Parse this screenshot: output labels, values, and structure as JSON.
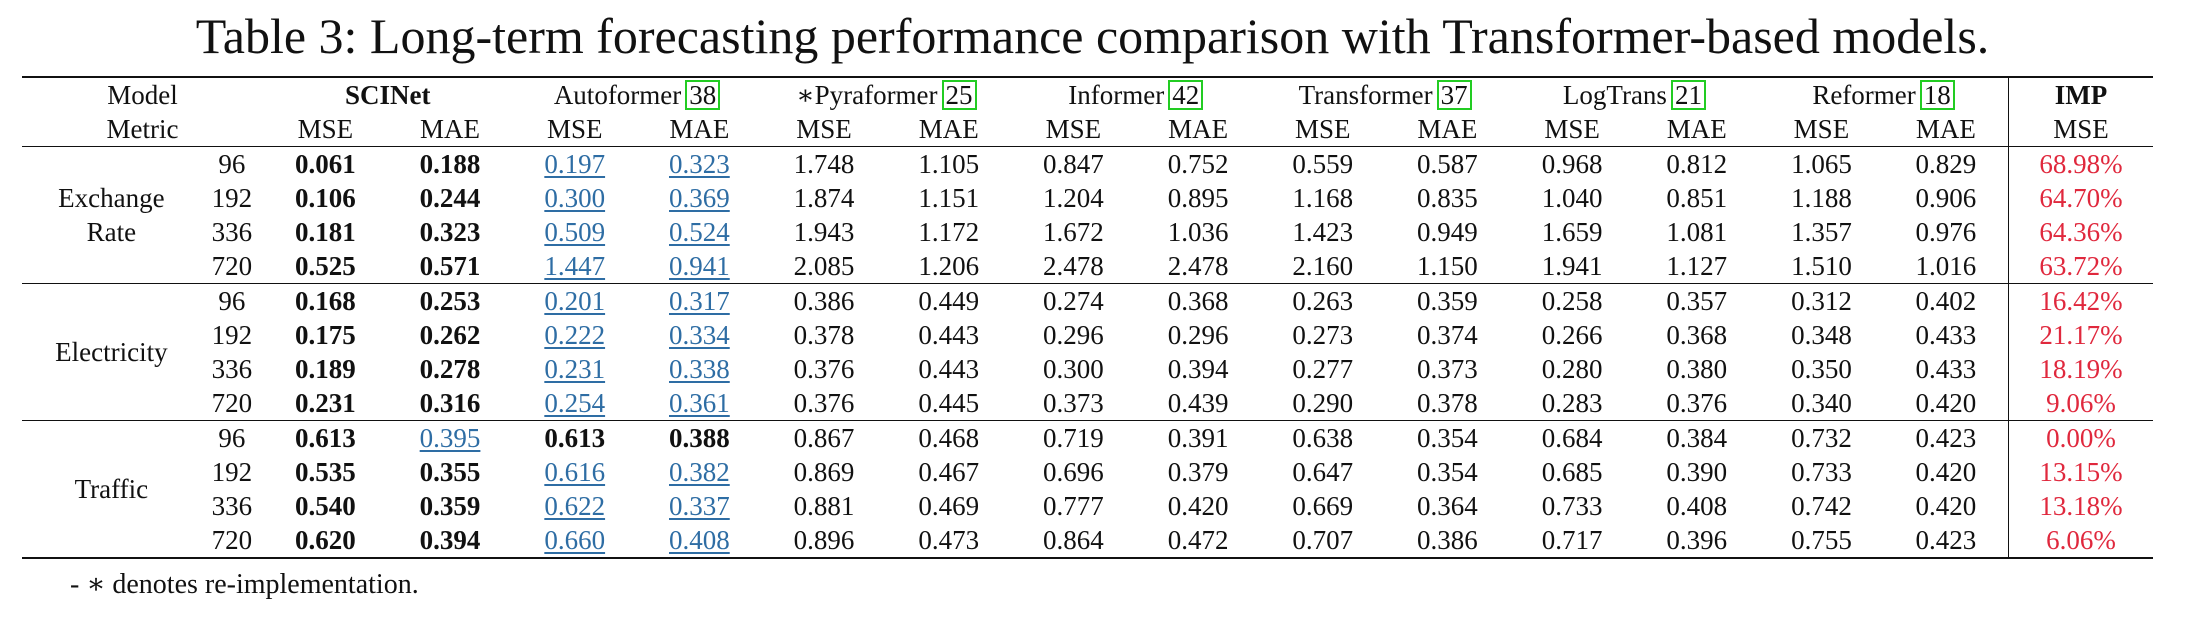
{
  "caption": "Table 3: Long-term forecasting performance comparison with Transformer-based models.",
  "header": {
    "model_label": "Model",
    "metric_label": "Metric",
    "models": [
      {
        "name": "SCINet",
        "ref": ""
      },
      {
        "name": "Autoformer",
        "ref": "38"
      },
      {
        "name": "∗Pyraformer",
        "ref": "25"
      },
      {
        "name": "Informer",
        "ref": "42"
      },
      {
        "name": "Transformer",
        "ref": "37"
      },
      {
        "name": "LogTrans",
        "ref": "21"
      },
      {
        "name": "Reformer",
        "ref": "18"
      }
    ],
    "imp_label": "IMP",
    "mse": "MSE",
    "mae": "MAE"
  },
  "datasets": [
    {
      "name_lines": [
        "Exchange",
        "Rate"
      ],
      "rows": [
        {
          "horizon": "96",
          "v": [
            "0.061",
            "0.188",
            "0.197",
            "0.323",
            "1.748",
            "1.105",
            "0.847",
            "0.752",
            "0.559",
            "0.587",
            "0.968",
            "0.812",
            "1.065",
            "0.829"
          ],
          "imp": "68.98%"
        },
        {
          "horizon": "192",
          "v": [
            "0.106",
            "0.244",
            "0.300",
            "0.369",
            "1.874",
            "1.151",
            "1.204",
            "0.895",
            "1.168",
            "0.835",
            "1.040",
            "0.851",
            "1.188",
            "0.906"
          ],
          "imp": "64.70%"
        },
        {
          "horizon": "336",
          "v": [
            "0.181",
            "0.323",
            "0.509",
            "0.524",
            "1.943",
            "1.172",
            "1.672",
            "1.036",
            "1.423",
            "0.949",
            "1.659",
            "1.081",
            "1.357",
            "0.976"
          ],
          "imp": "64.36%"
        },
        {
          "horizon": "720",
          "v": [
            "0.525",
            "0.571",
            "1.447",
            "0.941",
            "2.085",
            "1.206",
            "2.478",
            "2.478",
            "2.160",
            "1.150",
            "1.941",
            "1.127",
            "1.510",
            "1.016"
          ],
          "imp": "63.72%"
        }
      ]
    },
    {
      "name_lines": [
        "Electricity"
      ],
      "rows": [
        {
          "horizon": "96",
          "v": [
            "0.168",
            "0.253",
            "0.201",
            "0.317",
            "0.386",
            "0.449",
            "0.274",
            "0.368",
            "0.263",
            "0.359",
            "0.258",
            "0.357",
            "0.312",
            "0.402"
          ],
          "imp": "16.42%"
        },
        {
          "horizon": "192",
          "v": [
            "0.175",
            "0.262",
            "0.222",
            "0.334",
            "0.378",
            "0.443",
            "0.296",
            "0.296",
            "0.273",
            "0.374",
            "0.266",
            "0.368",
            "0.348",
            "0.433"
          ],
          "imp": "21.17%"
        },
        {
          "horizon": "336",
          "v": [
            "0.189",
            "0.278",
            "0.231",
            "0.338",
            "0.376",
            "0.443",
            "0.300",
            "0.394",
            "0.277",
            "0.373",
            "0.280",
            "0.380",
            "0.350",
            "0.433"
          ],
          "imp": "18.19%"
        },
        {
          "horizon": "720",
          "v": [
            "0.231",
            "0.316",
            "0.254",
            "0.361",
            "0.376",
            "0.445",
            "0.373",
            "0.439",
            "0.290",
            "0.378",
            "0.283",
            "0.376",
            "0.340",
            "0.420"
          ],
          "imp": "9.06%"
        }
      ]
    },
    {
      "name_lines": [
        "Traffic"
      ],
      "rows": [
        {
          "horizon": "96",
          "v": [
            "0.613",
            "0.395",
            "0.613",
            "0.388",
            "0.867",
            "0.468",
            "0.719",
            "0.391",
            "0.638",
            "0.354",
            "0.684",
            "0.384",
            "0.732",
            "0.423"
          ],
          "imp": "0.00%"
        },
        {
          "horizon": "192",
          "v": [
            "0.535",
            "0.355",
            "0.616",
            "0.382",
            "0.869",
            "0.467",
            "0.696",
            "0.379",
            "0.647",
            "0.354",
            "0.685",
            "0.390",
            "0.733",
            "0.420"
          ],
          "imp": "13.15%"
        },
        {
          "horizon": "336",
          "v": [
            "0.540",
            "0.359",
            "0.622",
            "0.337",
            "0.881",
            "0.469",
            "0.777",
            "0.420",
            "0.669",
            "0.364",
            "0.733",
            "0.408",
            "0.742",
            "0.420"
          ],
          "imp": "13.18%"
        },
        {
          "horizon": "720",
          "v": [
            "0.620",
            "0.394",
            "0.660",
            "0.408",
            "0.896",
            "0.473",
            "0.864",
            "0.472",
            "0.707",
            "0.386",
            "0.717",
            "0.396",
            "0.755",
            "0.423"
          ],
          "imp": "6.06%"
        }
      ]
    }
  ],
  "footnote": "- ∗ denotes re-implementation."
}
